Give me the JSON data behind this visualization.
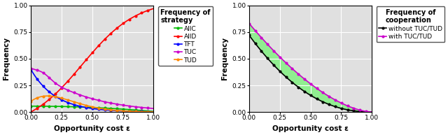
{
  "n_points": 300,
  "epsilon_min": 0.0,
  "epsilon_max": 1.0,
  "left_title": "Frequency of\nstrategy",
  "left_xlabel": "Opportunity cost ε",
  "left_ylabel": "Frequency",
  "left_ylim": [
    0,
    1.0
  ],
  "left_xlim": [
    0.0,
    1.0
  ],
  "left_yticks": [
    0.0,
    0.25,
    0.5,
    0.75,
    1.0
  ],
  "left_xticks": [
    0.0,
    0.25,
    0.5,
    0.75,
    1.0
  ],
  "right_title": "Frequency of\ncooperation",
  "right_xlabel": "Opportunity cost ε",
  "right_ylabel": "Frequency",
  "right_ylim": [
    0,
    1.0
  ],
  "right_xlim": [
    0.0,
    1.0
  ],
  "right_yticks": [
    0.0,
    0.25,
    0.5,
    0.75,
    1.0
  ],
  "right_xticks": [
    0.0,
    0.25,
    0.5,
    0.75,
    1.0
  ],
  "alld_color": "#ff0000",
  "allc_color": "#00bb00",
  "tft_color": "#0000ff",
  "tuc_color": "#cc00cc",
  "tud_color": "#ff8800",
  "without_color": "#000000",
  "with_color": "#cc00cc",
  "fill_color": "#90ee90",
  "marker_size": 2.0,
  "marker_interval": 15,
  "line_width": 1.2,
  "legend_fontsize": 6.5,
  "axis_label_fontsize": 7.5,
  "tick_fontsize": 6.5,
  "title_fontsize": 7.0,
  "allc_params": [
    0.05,
    2.0,
    0.005
  ],
  "alld_params": [
    0.97,
    4.5,
    0.42
  ],
  "tft_params": [
    0.4,
    5.0
  ],
  "tuc_params": [
    0.4,
    0.1,
    0.04,
    2.5
  ],
  "tud_params": [
    0.1,
    0.3,
    0.09,
    4.5
  ],
  "without_params": [
    0.72,
    2.2
  ],
  "with_params": [
    0.83,
    1.65
  ]
}
